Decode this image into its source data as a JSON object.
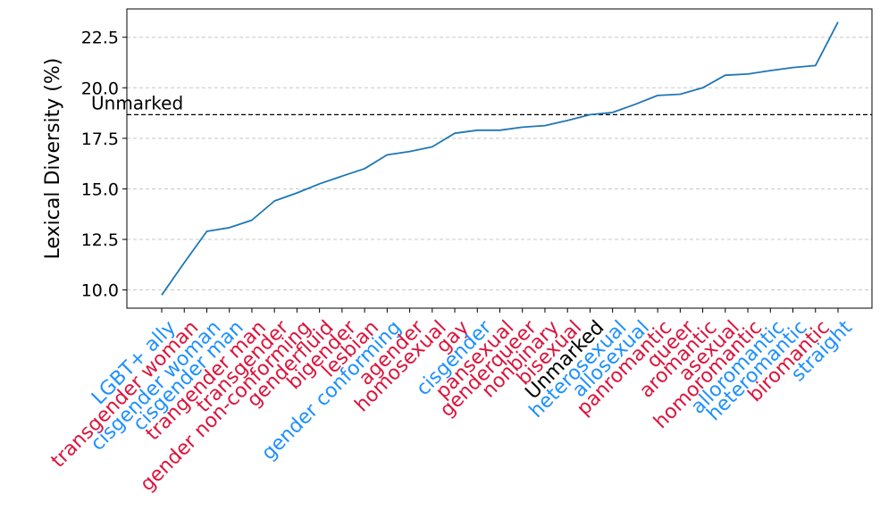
{
  "chart_data": {
    "type": "line",
    "title": "",
    "xlabel": "",
    "ylabel": "Lexical Diversity (%)",
    "ylim": [
      9.1,
      23.9
    ],
    "yticks": [
      10.0,
      12.5,
      15.0,
      17.5,
      20.0,
      22.5
    ],
    "ytick_labels": [
      "10.0",
      "12.5",
      "15.0",
      "17.5",
      "20.0",
      "22.5"
    ],
    "grid": "y-dashed",
    "line_color": "#1f77b4",
    "categories": [
      "LGBT+ ally",
      "transgender woman",
      "cisgender woman",
      "cisgender man",
      "trangender man",
      "transgender",
      "gender non-conforming",
      "genderfluid",
      "bigender",
      "lesbian",
      "gender conforming",
      "agender",
      "homosexual",
      "gay",
      "cisgender",
      "pansexual",
      "genderqueer",
      "nonbinary",
      "bisexual",
      "Unmarked",
      "heterosexual",
      "allosexual",
      "panromantic",
      "queer",
      "aromantic",
      "asexual",
      "homoromantic",
      "alloromantic",
      "heteromantic",
      "biromantic",
      "straight"
    ],
    "category_colors": [
      "#1e90ff",
      "#dc143c",
      "#1e90ff",
      "#1e90ff",
      "#dc143c",
      "#dc143c",
      "#dc143c",
      "#dc143c",
      "#dc143c",
      "#dc143c",
      "#1e90ff",
      "#dc143c",
      "#dc143c",
      "#dc143c",
      "#1e90ff",
      "#dc143c",
      "#dc143c",
      "#dc143c",
      "#dc143c",
      "#000000",
      "#1e90ff",
      "#1e90ff",
      "#dc143c",
      "#dc143c",
      "#dc143c",
      "#dc143c",
      "#dc143c",
      "#1e90ff",
      "#1e90ff",
      "#dc143c",
      "#1e90ff"
    ],
    "values": [
      9.75,
      11.35,
      12.9,
      13.08,
      13.45,
      14.4,
      14.8,
      15.25,
      15.63,
      16.0,
      16.68,
      16.85,
      17.08,
      17.75,
      17.9,
      17.9,
      18.05,
      18.13,
      18.38,
      18.67,
      18.78,
      19.18,
      19.62,
      19.68,
      20.0,
      20.62,
      20.68,
      20.85,
      21.0,
      21.1,
      23.25
    ],
    "reference_line": {
      "label": "Unmarked",
      "value": 18.67,
      "color": "#000000"
    }
  }
}
